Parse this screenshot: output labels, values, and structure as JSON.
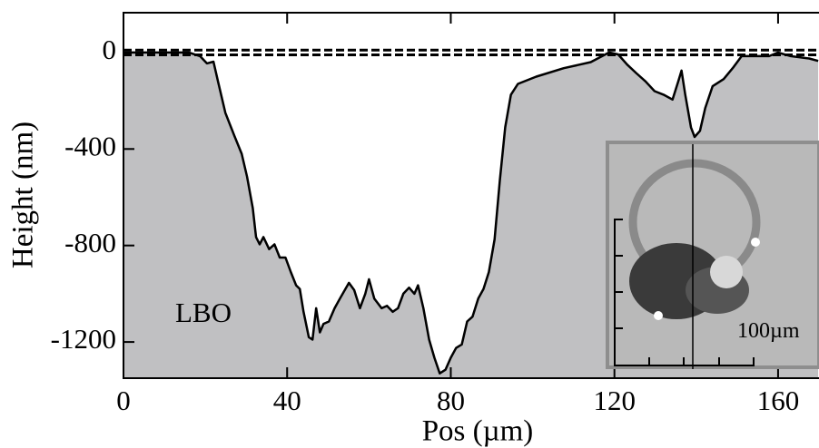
{
  "chart_data": {
    "type": "area",
    "x_label": "Pos (µm)",
    "y_label": "Height (nm)",
    "annotation": "LBO",
    "inset_label": "100µm",
    "xlim": [
      0,
      170
    ],
    "ylim": [
      -1350,
      165
    ],
    "xticks": [
      0,
      40,
      80,
      120,
      160
    ],
    "yticks": [
      0,
      -400,
      -800,
      -1200
    ],
    "hlines": [
      10,
      -10
    ],
    "color": "#c0c0c2",
    "line_color": "#000000",
    "x": [
      0,
      16,
      18.7,
      20.4,
      22,
      23.1,
      24.9,
      27.1,
      28.9,
      30.2,
      31.6,
      32.4,
      33.3,
      34.2,
      35.6,
      36.9,
      38.2,
      39.6,
      40.9,
      42.2,
      43.1,
      44,
      45.3,
      46.2,
      47.1,
      48,
      48.9,
      50.2,
      51.6,
      52.9,
      55.1,
      56.4,
      57.8,
      59.1,
      60,
      61.3,
      63.1,
      64.4,
      65.8,
      67.1,
      68.4,
      69.8,
      71.1,
      72,
      73.3,
      74.7,
      76,
      77.3,
      78.7,
      80,
      81.3,
      82.7,
      84,
      85.3,
      86.7,
      88,
      89.3,
      90.7,
      92,
      93.3,
      94.7,
      96.4,
      100.9,
      107.6,
      114.2,
      118.7,
      120.9,
      123.1,
      125.3,
      127.6,
      129.8,
      132,
      134.2,
      135.6,
      136.4,
      137.3,
      138.7,
      139.6,
      140.9,
      142.2,
      144,
      146.7,
      148.9,
      151.1,
      154.2,
      157.8,
      160,
      163.1,
      167.6,
      169.8
    ],
    "values": [
      0,
      0,
      -15,
      -45,
      -38,
      -120,
      -250,
      -345,
      -420,
      -515,
      -645,
      -765,
      -795,
      -765,
      -815,
      -795,
      -850,
      -850,
      -910,
      -965,
      -980,
      -1075,
      -1180,
      -1190,
      -1060,
      -1160,
      -1125,
      -1115,
      -1060,
      -1020,
      -955,
      -985,
      -1060,
      -1000,
      -940,
      -1020,
      -1060,
      -1050,
      -1075,
      -1060,
      -1000,
      -975,
      -1000,
      -965,
      -1060,
      -1190,
      -1265,
      -1330,
      -1315,
      -1265,
      -1225,
      -1210,
      -1115,
      -1095,
      -1020,
      -980,
      -910,
      -775,
      -530,
      -310,
      -175,
      -130,
      -100,
      -65,
      -40,
      0,
      -8,
      -50,
      -85,
      -120,
      -160,
      -175,
      -195,
      -120,
      -75,
      -175,
      -310,
      -350,
      -325,
      -230,
      -140,
      -110,
      -65,
      -15,
      -15,
      -15,
      0,
      -15,
      -25,
      -35
    ]
  }
}
